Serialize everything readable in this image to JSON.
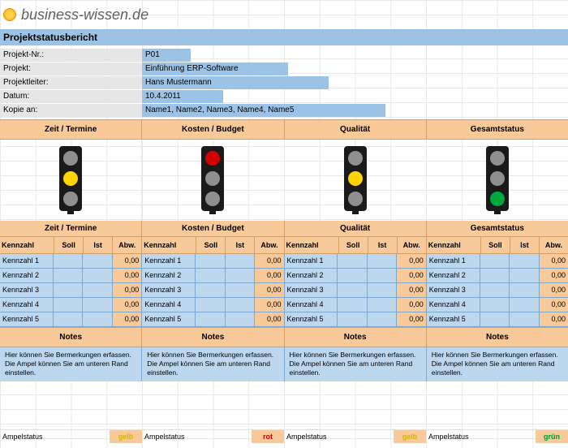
{
  "logo_text": "business-wissen.de",
  "title": "Projektstatusbericht",
  "meta": {
    "projekt_nr_label": "Projekt-Nr.:",
    "projekt_nr": "P01",
    "projekt_label": "Projekt:",
    "projekt": "Einführung ERP-Software",
    "leiter_label": "Projektleiter:",
    "leiter": "Hans Mustermann",
    "datum_label": "Datum:",
    "datum": "10.4.2011",
    "kopie_label": "Kopie an:",
    "kopie": "Name1, Name2, Name3, Name4, Name5"
  },
  "sections": [
    "Zeit / Termine",
    "Kosten / Budget",
    "Qualität",
    "Gesamtstatus"
  ],
  "lights": [
    "yellow",
    "red",
    "yellow",
    "green"
  ],
  "kpi_cols": [
    "Kennzahl",
    "Soll",
    "Ist",
    "Abw."
  ],
  "kpi_rows": [
    "Kennzahl 1",
    "Kennzahl 2",
    "Kennzahl 3",
    "Kennzahl 4",
    "Kennzahl 5"
  ],
  "kpi_abw_value": "0,00",
  "notes_header": "Notes",
  "notes_text": "Hier können Sie Bermerkungen erfassen. Die Ampel können Sie am unteren Rand einstellen.",
  "ampel": {
    "label": "Ampelstatus",
    "values": [
      "gelb",
      "rot",
      "gelb",
      "grün"
    ]
  },
  "colors": {
    "header_blue": "#9cc3e6",
    "orange": "#f8c999",
    "cell_blue": "#bdd7ee",
    "label_gray": "#e6e6e6",
    "red": "#d40000",
    "yellow": "#ffd400",
    "green": "#00a63e",
    "gray_off": "#8f8f8f"
  }
}
